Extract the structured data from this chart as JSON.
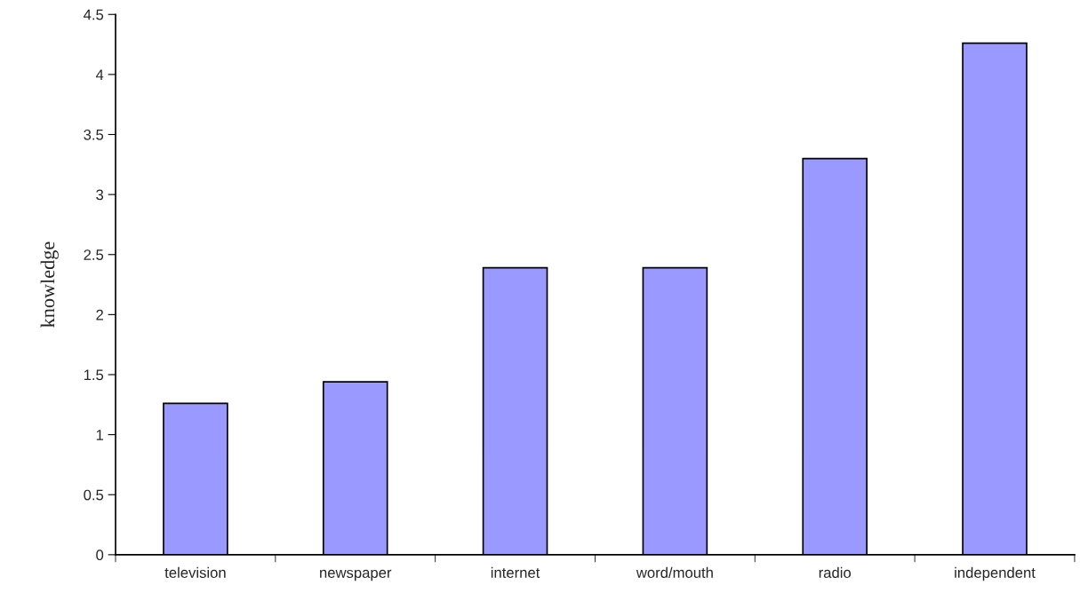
{
  "chart_data": {
    "type": "bar",
    "ylabel": "knowledge",
    "categories": [
      "television",
      "newspaper",
      "internet",
      "word/mouth",
      "radio",
      "independent"
    ],
    "values": [
      1.26,
      1.44,
      2.39,
      2.39,
      3.3,
      4.26
    ],
    "color": "#9999ff",
    "ylim": [
      0,
      4.5
    ],
    "yticks": [
      0,
      0.5,
      1,
      1.5,
      2,
      2.5,
      3,
      3.5,
      4,
      4.5
    ],
    "grid": false
  }
}
